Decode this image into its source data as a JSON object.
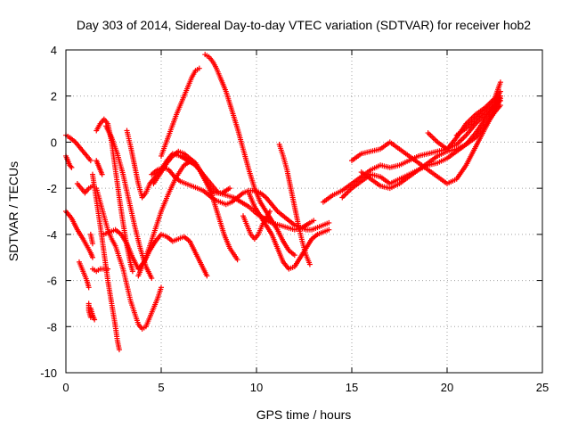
{
  "chart_data": {
    "type": "scatter",
    "title": "Day 303 of 2014, Sidereal Day-to-day VTEC variation (SDTVAR) for receiver hob2",
    "xlabel": "GPS time / hours",
    "ylabel": "SDTVAR / TECUs",
    "xlim": [
      0,
      25
    ],
    "ylim": [
      -10,
      4
    ],
    "xticks": [
      0,
      5,
      10,
      15,
      20,
      25
    ],
    "yticks": [
      -10,
      -8,
      -6,
      -4,
      -2,
      0,
      2,
      4
    ],
    "grid": true,
    "marker": "plus",
    "color": "#ff0000",
    "series": [
      {
        "x": [
          0.0,
          0.2,
          0.5,
          0.8,
          1.1,
          1.3
        ],
        "y": [
          0.3,
          0.2,
          0.0,
          -0.3,
          -0.6,
          -0.8
        ]
      },
      {
        "x": [
          0.0,
          0.1,
          0.2,
          0.3
        ],
        "y": [
          -0.6,
          -0.8,
          -1.0,
          -1.1
        ]
      },
      {
        "x": [
          0.6,
          0.8,
          1.0,
          1.2,
          1.4
        ],
        "y": [
          -1.8,
          -2.0,
          -2.2,
          -2.0,
          -1.9
        ]
      },
      {
        "x": [
          0.0,
          0.3,
          0.6,
          0.9,
          1.1,
          1.3,
          1.4
        ],
        "y": [
          -3.0,
          -3.3,
          -3.8,
          -4.2,
          -4.5,
          -4.8,
          -5.0
        ]
      },
      {
        "x": [
          0.7,
          0.9,
          1.1,
          1.2
        ],
        "y": [
          -5.2,
          -5.6,
          -6.0,
          -6.3
        ]
      },
      {
        "x": [
          1.3,
          1.4,
          1.5
        ],
        "y": [
          -7.2,
          -7.5,
          -7.7
        ]
      },
      {
        "x": [
          1.2,
          1.2,
          1.3
        ],
        "y": [
          -7.0,
          -7.3,
          -7.6
        ]
      },
      {
        "x": [
          1.3,
          1.4
        ],
        "y": [
          -4.0,
          -4.4
        ]
      },
      {
        "x": [
          1.4,
          1.6,
          1.8,
          2.0,
          2.2,
          2.4,
          2.6,
          2.7,
          2.8
        ],
        "y": [
          -1.4,
          -2.5,
          -3.6,
          -4.8,
          -6.0,
          -7.0,
          -8.0,
          -8.6,
          -9.0
        ]
      },
      {
        "x": [
          1.4,
          1.6,
          1.8,
          2.0,
          2.2
        ],
        "y": [
          -5.5,
          -5.6,
          -5.5,
          -5.5,
          -5.5
        ]
      },
      {
        "x": [
          1.6,
          1.7,
          1.8,
          1.9
        ],
        "y": [
          -0.8,
          -1.0,
          -1.2,
          -1.4
        ]
      },
      {
        "x": [
          1.6,
          1.8,
          2.0,
          2.2,
          2.4,
          2.6,
          2.8,
          3.0,
          3.2,
          3.4,
          3.5
        ],
        "y": [
          0.5,
          0.8,
          1.0,
          0.8,
          0.0,
          -1.2,
          -2.4,
          -3.5,
          -4.5,
          -5.3,
          -5.6
        ]
      },
      {
        "x": [
          1.6,
          1.8,
          2.0,
          2.2,
          2.4,
          2.6,
          2.8,
          3.0,
          3.2,
          3.4,
          3.6,
          3.8,
          4.0,
          4.2,
          4.4,
          4.6,
          4.8,
          5.0
        ],
        "y": [
          -2.0,
          -2.6,
          -3.2,
          -3.8,
          -4.2,
          -4.5,
          -5.0,
          -5.5,
          -6.2,
          -6.9,
          -7.4,
          -7.9,
          -8.1,
          -8.0,
          -7.6,
          -7.2,
          -6.8,
          -6.3
        ]
      },
      {
        "x": [
          2.0,
          2.3,
          2.6,
          2.9,
          3.2,
          3.5,
          3.8,
          4.1,
          4.4,
          4.7,
          5.0,
          5.3,
          5.6,
          5.9,
          6.2,
          6.5,
          6.8,
          7.1,
          7.4
        ],
        "y": [
          -4.0,
          -3.9,
          -3.8,
          -4.0,
          -4.4,
          -5.0,
          -5.5,
          -5.2,
          -4.7,
          -4.3,
          -4.0,
          -4.1,
          -4.3,
          -4.2,
          -4.1,
          -4.3,
          -4.8,
          -5.3,
          -5.8
        ]
      },
      {
        "x": [
          2.1,
          2.4,
          2.7,
          3.0,
          3.3,
          3.6,
          3.9,
          4.2,
          4.5
        ],
        "y": [
          0.7,
          0.2,
          -0.5,
          -1.4,
          -2.5,
          -3.6,
          -4.6,
          -5.4,
          -5.9
        ]
      },
      {
        "x": [
          3.2,
          3.4,
          3.6,
          3.8,
          4.0,
          4.2,
          4.4,
          4.7,
          5.0,
          5.3,
          5.6,
          6.0,
          6.4,
          6.8,
          7.2,
          7.6,
          8.0,
          8.4,
          8.8,
          9.2,
          9.6,
          10.0,
          10.4,
          10.8,
          11.2,
          11.6,
          12.0,
          12.4,
          12.8,
          13.0
        ],
        "y": [
          0.5,
          -0.2,
          -1.0,
          -1.8,
          -2.4,
          -2.2,
          -1.8,
          -1.5,
          -1.2,
          -0.8,
          -0.5,
          -0.6,
          -0.8,
          -1.0,
          -1.4,
          -1.8,
          -2.2,
          -2.3,
          -2.4,
          -2.6,
          -2.8,
          -3.1,
          -3.3,
          -3.5,
          -3.6,
          -3.7,
          -3.8,
          -3.7,
          -3.5,
          -3.4
        ]
      },
      {
        "x": [
          3.8,
          4.2,
          4.6,
          5.0,
          5.4,
          5.8,
          6.2,
          6.6,
          7.0,
          7.4,
          7.8,
          8.2,
          8.6
        ],
        "y": [
          -5.8,
          -5.0,
          -4.0,
          -3.0,
          -2.2,
          -1.5,
          -1.0,
          -0.8,
          -1.2,
          -1.8,
          -2.2,
          -2.2,
          -2.0
        ]
      },
      {
        "x": [
          4.6,
          5.0,
          5.3,
          5.6,
          5.9,
          6.2,
          6.5,
          6.8,
          7.1,
          7.4,
          7.7,
          8.0,
          8.3,
          8.6,
          9.0
        ],
        "y": [
          -1.8,
          -1.3,
          -0.9,
          -0.6,
          -0.4,
          -0.5,
          -0.7,
          -0.9,
          -1.3,
          -1.8,
          -2.4,
          -3.2,
          -4.0,
          -4.6,
          -5.1
        ]
      },
      {
        "x": [
          4.5,
          4.8,
          5.1,
          5.4,
          5.7,
          6.0,
          6.3,
          6.6,
          6.9,
          7.2,
          7.5,
          7.8,
          8.1,
          8.4,
          8.7,
          9.0,
          9.3,
          9.6,
          9.9,
          10.2,
          10.5,
          10.8,
          11.1,
          11.4,
          11.7,
          12.0,
          12.3,
          12.6,
          12.9,
          13.2,
          13.5,
          13.8
        ],
        "y": [
          -1.4,
          -1.2,
          -1.1,
          -1.2,
          -1.5,
          -1.7,
          -1.8,
          -1.9,
          -2.0,
          -2.1,
          -2.3,
          -2.5,
          -2.6,
          -2.7,
          -2.6,
          -2.4,
          -2.2,
          -2.1,
          -2.1,
          -2.2,
          -2.4,
          -2.7,
          -3.0,
          -3.2,
          -3.4,
          -3.6,
          -3.7,
          -3.8,
          -3.8,
          -3.7,
          -3.6,
          -3.5
        ]
      },
      {
        "x": [
          5.0,
          5.4,
          5.8,
          6.2,
          6.6,
          6.8,
          7.0
        ],
        "y": [
          -0.6,
          0.3,
          1.2,
          2.0,
          2.8,
          3.1,
          3.2
        ]
      },
      {
        "x": [
          7.3,
          7.5,
          7.7,
          7.9,
          8.1,
          8.4,
          8.7,
          9.0,
          9.3,
          9.6,
          9.9,
          10.2,
          10.5,
          10.8,
          11.1,
          11.4,
          11.7,
          12.0
        ],
        "y": [
          3.8,
          3.7,
          3.5,
          3.2,
          2.8,
          2.2,
          1.4,
          0.6,
          -0.3,
          -1.2,
          -2.0,
          -2.6,
          -3.0,
          -3.4,
          -3.8,
          -4.3,
          -4.7,
          -4.9
        ]
      },
      {
        "x": [
          9.3,
          9.5,
          9.7,
          9.9,
          10.1,
          10.3,
          10.5,
          10.7
        ],
        "y": [
          -3.2,
          -3.6,
          -4.0,
          -4.2,
          -4.0,
          -3.6,
          -3.3,
          -3.0
        ]
      },
      {
        "x": [
          9.6,
          9.9,
          10.2,
          10.5,
          10.8,
          11.1,
          11.4,
          11.7,
          12.0,
          12.3,
          12.6,
          12.9,
          13.2,
          13.5,
          13.8
        ],
        "y": [
          -2.2,
          -2.8,
          -3.2,
          -3.6,
          -4.0,
          -4.6,
          -5.2,
          -5.5,
          -5.4,
          -5.0,
          -4.6,
          -4.2,
          -4.0,
          -3.9,
          -3.8
        ]
      },
      {
        "x": [
          11.2,
          11.4,
          11.6,
          11.8,
          12.0,
          12.2,
          12.4,
          12.6,
          12.8
        ],
        "y": [
          -0.1,
          -0.6,
          -1.2,
          -2.0,
          -2.8,
          -3.6,
          -4.3,
          -4.9,
          -5.3
        ]
      },
      {
        "x": [
          13.5,
          14.0,
          14.5,
          15.0,
          15.5,
          16.0,
          16.5,
          17.0,
          17.5,
          18.0,
          18.5,
          19.0,
          19.5,
          20.0,
          20.5,
          21.0,
          21.5,
          22.0,
          22.5,
          22.8
        ],
        "y": [
          -2.6,
          -2.3,
          -2.1,
          -1.8,
          -1.5,
          -1.2,
          -1.0,
          -1.1,
          -1.0,
          -0.8,
          -0.6,
          -0.5,
          -0.4,
          -0.3,
          -0.1,
          0.3,
          0.8,
          1.2,
          1.6,
          1.8
        ]
      },
      {
        "x": [
          14.5,
          15.0,
          15.5,
          16.0,
          16.5,
          17.0,
          17.5,
          18.0,
          18.5,
          19.0,
          19.5,
          20.0,
          20.5,
          21.0,
          21.5,
          22.0,
          22.5,
          22.8
        ],
        "y": [
          -2.4,
          -2.0,
          -1.7,
          -1.4,
          -1.5,
          -1.8,
          -1.6,
          -1.4,
          -1.2,
          -1.0,
          -0.9,
          -0.7,
          -0.4,
          -0.1,
          0.4,
          1.0,
          1.6,
          2.0
        ]
      },
      {
        "x": [
          15.0,
          15.5,
          16.0,
          16.5,
          17.0,
          17.5,
          18.0,
          18.5,
          19.0,
          19.5,
          20.0,
          20.5,
          21.0,
          21.5,
          22.0,
          22.5,
          22.8
        ],
        "y": [
          -0.8,
          -0.5,
          -0.4,
          -0.3,
          0.0,
          -0.3,
          -0.6,
          -0.9,
          -1.2,
          -1.5,
          -1.8,
          -1.6,
          -1.0,
          -0.2,
          0.6,
          1.4,
          1.9
        ]
      },
      {
        "x": [
          15.5,
          16.0,
          16.5,
          17.0,
          17.5,
          18.0,
          18.5,
          19.0,
          19.5,
          20.0,
          20.5,
          21.0,
          21.5,
          22.0,
          22.5,
          22.8
        ],
        "y": [
          -1.3,
          -1.6,
          -1.9,
          -2.0,
          -1.8,
          -1.5,
          -1.2,
          -0.9,
          -0.6,
          -0.4,
          -0.3,
          -0.1,
          0.2,
          0.7,
          1.3,
          1.6
        ]
      },
      {
        "x": [
          19.0,
          19.5,
          20.0,
          20.5,
          21.0,
          21.5,
          22.0,
          22.5,
          22.8
        ],
        "y": [
          0.4,
          0.0,
          -0.3,
          0.2,
          0.8,
          1.2,
          1.5,
          1.9,
          2.6
        ]
      },
      {
        "x": [
          20.5,
          21.0,
          21.5,
          22.0,
          22.5,
          22.8
        ],
        "y": [
          0.3,
          0.6,
          1.0,
          1.4,
          1.8,
          2.2
        ]
      }
    ]
  }
}
